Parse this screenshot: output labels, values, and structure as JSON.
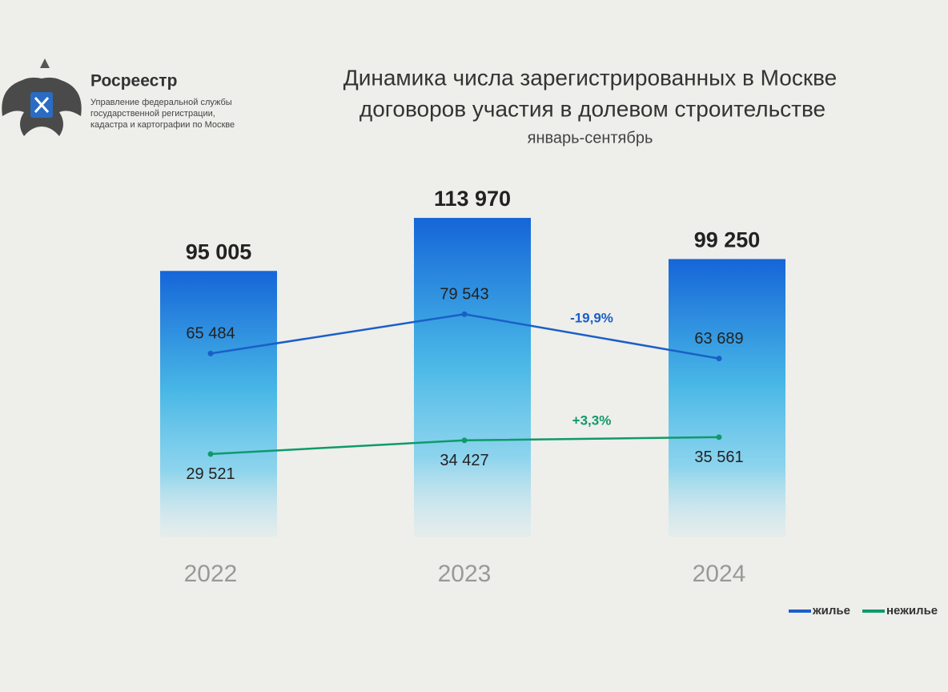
{
  "header": {
    "brand": "Росреестр",
    "agency": [
      "Управление федеральной службы",
      "государственной регистрации,",
      "кадастра и картографии по Москве"
    ]
  },
  "chart_data": {
    "type": "bar",
    "title": [
      "Динамика числа зарегистрированных в Москве",
      "договоров участия в долевом строительстве"
    ],
    "subtitle": "январь-сентябрь",
    "categories": [
      "2022",
      "2023",
      "2024"
    ],
    "values": [
      95005,
      113970,
      99250
    ],
    "value_labels": [
      "95 005",
      "113 970",
      "99 250"
    ],
    "color": "#1565d8",
    "ylim": [
      0,
      120000
    ],
    "series": [
      {
        "name": "жилье",
        "color": "#1a5fc8",
        "values": [
          65484,
          79543,
          63689
        ],
        "value_labels": [
          "65 484",
          "79 543",
          "63 689"
        ]
      },
      {
        "name": "нежилье",
        "color": "#0f9a6a",
        "values": [
          29521,
          34427,
          35561
        ],
        "value_labels": [
          "29 521",
          "34 427",
          "35 561"
        ]
      }
    ],
    "annotations": [
      "-19,9%",
      "+3,3%"
    ],
    "legend": "bottom-right"
  }
}
